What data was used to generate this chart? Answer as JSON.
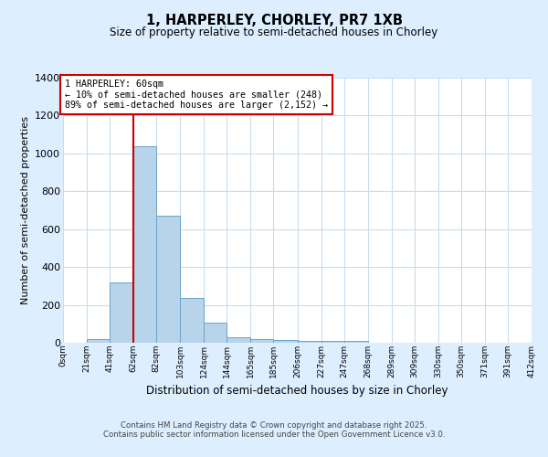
{
  "title1": "1, HARPERLEY, CHORLEY, PR7 1XB",
  "title2": "Size of property relative to semi-detached houses in Chorley",
  "xlabel": "Distribution of semi-detached houses by size in Chorley",
  "ylabel": "Number of semi-detached properties",
  "bins": [
    0,
    21,
    41,
    62,
    82,
    103,
    124,
    144,
    165,
    185,
    206,
    227,
    247,
    268,
    289,
    309,
    330,
    350,
    371,
    391,
    412
  ],
  "values": [
    0,
    20,
    320,
    1040,
    670,
    235,
    105,
    30,
    20,
    15,
    12,
    10,
    8,
    0,
    0,
    0,
    0,
    0,
    0,
    0
  ],
  "bar_color": "#b8d4ea",
  "bar_edge_color": "#6ba3c8",
  "vline_x": 62,
  "vline_color": "#cc0000",
  "ylim": [
    0,
    1400
  ],
  "annotation_text": "1 HARPERLEY: 60sqm\n← 10% of semi-detached houses are smaller (248)\n89% of semi-detached houses are larger (2,152) →",
  "bg_color": "#ddeeff",
  "plot_bg_color": "#ffffff",
  "footer1": "Contains HM Land Registry data © Crown copyright and database right 2025.",
  "footer2": "Contains public sector information licensed under the Open Government Licence v3.0.",
  "tick_labels": [
    "0sqm",
    "21sqm",
    "41sqm",
    "62sqm",
    "82sqm",
    "103sqm",
    "124sqm",
    "144sqm",
    "165sqm",
    "185sqm",
    "206sqm",
    "227sqm",
    "247sqm",
    "268sqm",
    "289sqm",
    "309sqm",
    "330sqm",
    "350sqm",
    "371sqm",
    "391sqm",
    "412sqm"
  ],
  "grid_color": "#c8dded",
  "yticks": [
    0,
    200,
    400,
    600,
    800,
    1000,
    1200,
    1400
  ]
}
